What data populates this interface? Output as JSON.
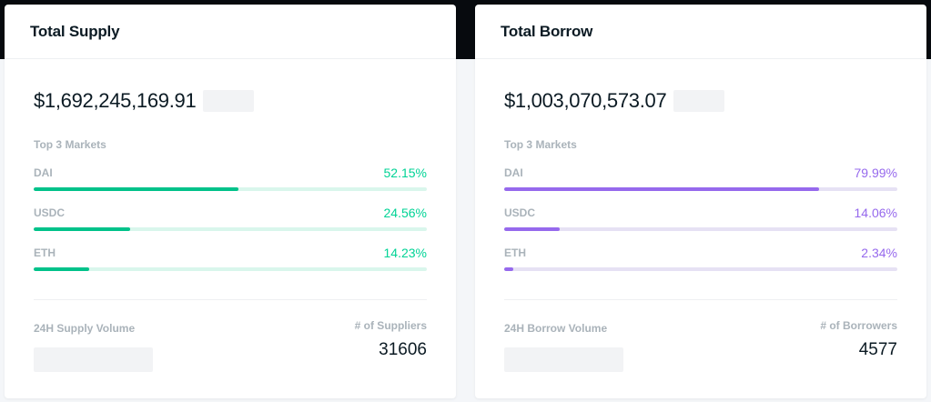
{
  "supply": {
    "title": "Total Supply",
    "total": "$1,692,245,169.91",
    "markets_title": "Top 3 Markets",
    "markets": [
      {
        "name": "DAI",
        "percent": "52.15%",
        "fraction": 0.5215
      },
      {
        "name": "USDC",
        "percent": "24.56%",
        "fraction": 0.2456
      },
      {
        "name": "ETH",
        "percent": "14.23%",
        "fraction": 0.1423
      }
    ],
    "volume_label": "24H Supply Volume",
    "count_label": "# of Suppliers",
    "count_value": "31606",
    "accent_color": "#00d395"
  },
  "borrow": {
    "title": "Total Borrow",
    "total": "$1,003,070,573.07",
    "markets_title": "Top 3 Markets",
    "markets": [
      {
        "name": "DAI",
        "percent": "79.99%",
        "fraction": 0.7999
      },
      {
        "name": "USDC",
        "percent": "14.06%",
        "fraction": 0.1406
      },
      {
        "name": "ETH",
        "percent": "2.34%",
        "fraction": 0.0234
      }
    ],
    "volume_label": "24H Borrow Volume",
    "count_label": "# of Borrowers",
    "count_value": "4577",
    "accent_color": "#9669ed"
  }
}
